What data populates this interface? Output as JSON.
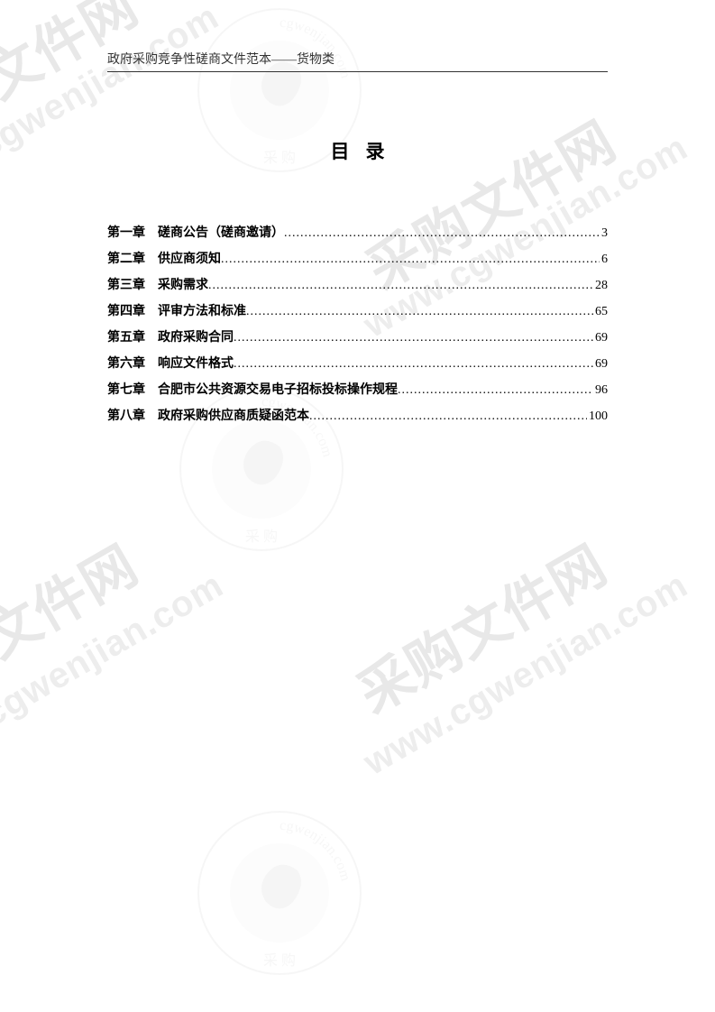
{
  "header": {
    "text": "政府采购竞争性磋商文件范本——货物类"
  },
  "toc": {
    "title": "目录",
    "items": [
      {
        "chapter": "第一章",
        "name": "磋商公告（磋商邀请）",
        "page": "3"
      },
      {
        "chapter": "第二章",
        "name": "供应商须知",
        "page": "6"
      },
      {
        "chapter": "第三章",
        "name": "采购需求",
        "page": "28"
      },
      {
        "chapter": "第四章",
        "name": "评审方法和标准",
        "page": "65"
      },
      {
        "chapter": "第五章",
        "name": "政府采购合同",
        "page": "69"
      },
      {
        "chapter": "第六章",
        "name": "响应文件格式",
        "page": "69"
      },
      {
        "chapter": "第七章",
        "name": "合肥市公共资源交易电子招标投标操作规程",
        "page": "96"
      },
      {
        "chapter": "第八章",
        "name": "政府采购供应商质疑函范本",
        "page": "100"
      }
    ]
  },
  "watermark": {
    "text_url": "www.cgwenjian.com",
    "text_cn": "采购文件网",
    "logo_ring_text": "cgwenjian.com",
    "logo_bottom_text": "采 购",
    "colors": {
      "watermark": "#eeeeee",
      "watermark_cn": "#e8e8e8",
      "text": "#000000",
      "header": "#333333",
      "background": "#ffffff"
    }
  }
}
